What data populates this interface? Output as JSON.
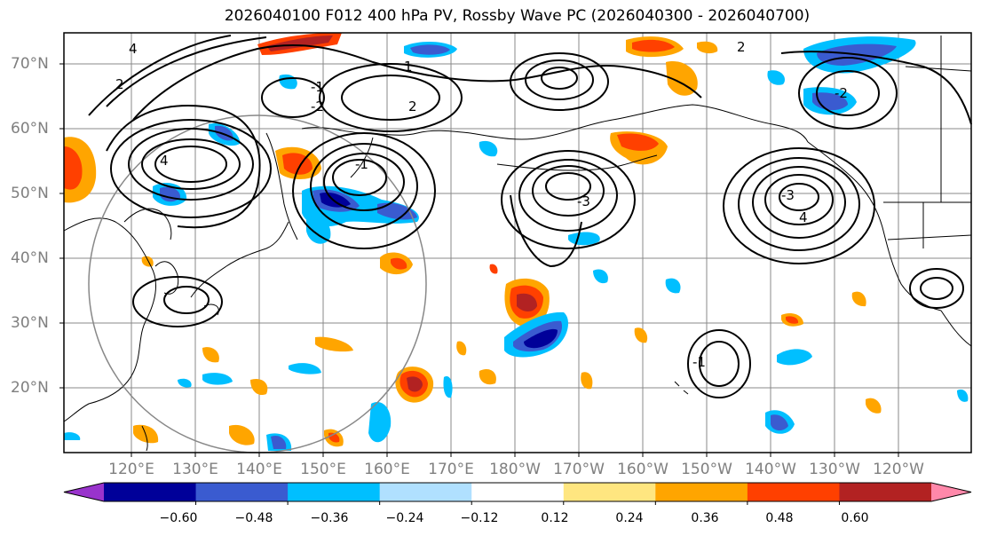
{
  "title": "2026040100 F012 400 hPa PV, Rossby Wave PC (2026040300 - 2026040700)",
  "lat_labels": [
    "70°N",
    "60°N",
    "50°N",
    "40°N",
    "30°N",
    "20°N"
  ],
  "lon_labels": [
    "120°E",
    "130°E",
    "140°E",
    "150°E",
    "160°E",
    "170°E",
    "180°W",
    "170°W",
    "160°W",
    "150°W",
    "140°W",
    "130°W",
    "120°W"
  ],
  "colorbar": {
    "ticks": [
      "−0.60",
      "−0.48",
      "−0.36",
      "−0.24",
      "−0.12",
      "0.12",
      "0.24",
      "0.36",
      "0.48",
      "0.60"
    ],
    "colors": [
      "#9933cc",
      "#000099",
      "#3a5bd0",
      "#00bfff",
      "#b0e0ff",
      "#ffffff",
      "#ffe680",
      "#ffa500",
      "#ff4000",
      "#b22222",
      "#ff88aa"
    ]
  },
  "contour_labels": [
    "4",
    "-1",
    "2",
    "-2",
    "1",
    "2",
    "-1",
    "-3",
    "4",
    "-3",
    "-1",
    "4",
    "2",
    "-2"
  ]
}
